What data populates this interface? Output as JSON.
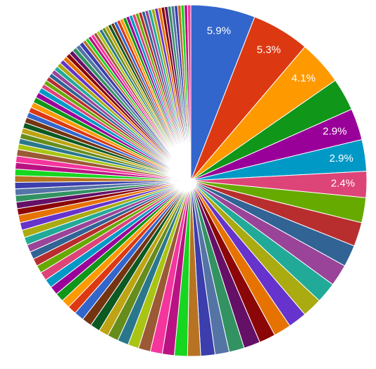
{
  "chart_data": {
    "type": "pie",
    "values": [
      5.9,
      5.3,
      4.1,
      3.0,
      2.9,
      2.9,
      2.4,
      2.3,
      2.2,
      2.0,
      2.0,
      1.9,
      1.8,
      1.7,
      1.6,
      1.5,
      1.5,
      1.4,
      1.3,
      1.3,
      1.2,
      1.2,
      1.1,
      1.1,
      1.1,
      1.0,
      1.0,
      1.0,
      0.9,
      0.9,
      0.9,
      0.9,
      0.8,
      0.8,
      0.8,
      0.8,
      0.8,
      0.8,
      0.7,
      0.7,
      0.7,
      0.7,
      0.7,
      0.7,
      0.7,
      0.7,
      0.6,
      0.6,
      0.6,
      0.6,
      0.6,
      0.6,
      0.6,
      0.6,
      0.6,
      0.6,
      0.5,
      0.5,
      0.5,
      0.5,
      0.5,
      0.5,
      0.5,
      0.5,
      0.5,
      0.5,
      0.5,
      0.5,
      0.4,
      0.4,
      0.4,
      0.4,
      0.4,
      0.4,
      0.4,
      0.4,
      0.4,
      0.4,
      0.4,
      0.4,
      0.4,
      0.4,
      0.3,
      0.3,
      0.3,
      0.3,
      0.3,
      0.3,
      0.3,
      0.3,
      0.3,
      0.3,
      0.3,
      0.3,
      0.3,
      0.3,
      0.3,
      0.3,
      0.3,
      0.3,
      0.3,
      0.3,
      0.3,
      0.3,
      0.3,
      0.3,
      0.3,
      0.3,
      0.3,
      0.3,
      0.3,
      0.3,
      0.3,
      0.3,
      0.3,
      0.3,
      0.3
    ],
    "value_labels": [
      "5.9%",
      "5.3%",
      "4.1%",
      null,
      "2.9%",
      "2.9%",
      "2.4%",
      null,
      null,
      null,
      null,
      null,
      null,
      null,
      null,
      null,
      null,
      null,
      null,
      null,
      null,
      null,
      null,
      null,
      null,
      null,
      null,
      null,
      null,
      null,
      null,
      null,
      null,
      null,
      null,
      null,
      null,
      null,
      null,
      null,
      null,
      null,
      null,
      null,
      null,
      null,
      null,
      null,
      null,
      null,
      null,
      null,
      null,
      null,
      null,
      null,
      null,
      null,
      null,
      null,
      null,
      null,
      null,
      null,
      null,
      null,
      null,
      null,
      null,
      null,
      null,
      null,
      null,
      null,
      null,
      null,
      null,
      null,
      null,
      null,
      null,
      null,
      null,
      null,
      null,
      null,
      null,
      null,
      null,
      null,
      null,
      null,
      null,
      null,
      null,
      null,
      null,
      null,
      null,
      null,
      null,
      null,
      null,
      null,
      null,
      null,
      null,
      null,
      null,
      null,
      null,
      null,
      null,
      null,
      null,
      null,
      null
    ],
    "colors": [
      "#3366cc",
      "#dc3912",
      "#ff9900",
      "#109618",
      "#990099",
      "#0099c6",
      "#dd4477",
      "#66aa00",
      "#b82e2e",
      "#316395",
      "#994499",
      "#22aa99",
      "#aaaa11",
      "#6633cc",
      "#e67300",
      "#8b0707",
      "#651067",
      "#329262",
      "#5574a6",
      "#3b3eac",
      "#b77322",
      "#16d620",
      "#b91383",
      "#f4359e",
      "#9c5935",
      "#a9c413",
      "#2a778d",
      "#668d1c",
      "#bea413",
      "#0c5922",
      "#743411"
    ]
  }
}
